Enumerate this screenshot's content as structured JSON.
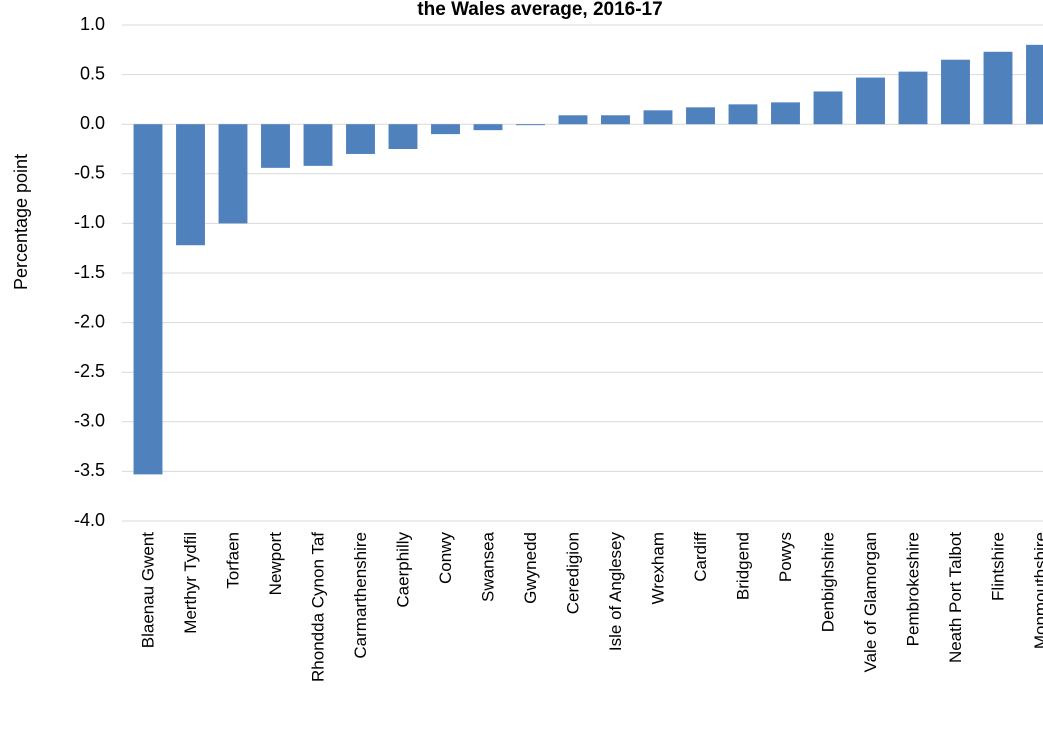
{
  "chart_data": {
    "type": "bar",
    "title": "the Wales average, 2016-17",
    "y_label": "Percentage point",
    "categories": [
      "Blaenau Gwent",
      "Merthyr Tydfil",
      "Torfaen",
      "Newport",
      "Rhondda Cynon Taf",
      "Carmarthenshire",
      "Caerphilly",
      "Conwy",
      "Swansea",
      "Gwynedd",
      "Ceredigion",
      "Isle of Anglesey",
      "Wrexham",
      "Cardiff",
      "Bridgend",
      "Powys",
      "Denbighshire",
      "Vale of Glamorgan",
      "Pembrokeshire",
      "Neath Port Talbot",
      "Flintshire",
      "Monmouthshire"
    ],
    "values": [
      -3.53,
      -1.22,
      -1.0,
      -0.44,
      -0.42,
      -0.3,
      -0.25,
      -0.1,
      -0.06,
      -0.01,
      0.09,
      0.09,
      0.14,
      0.17,
      0.2,
      0.22,
      0.33,
      0.47,
      0.53,
      0.65,
      0.73,
      0.8
    ],
    "color": "#4f81bd",
    "ylim": [
      -4.0,
      1.0
    ],
    "yticks": [
      {
        "value": 1.0,
        "label": "1.0"
      },
      0.5,
      {
        "value": 0.0,
        "label": "0.0"
      },
      -0.5,
      {
        "value": -1.0,
        "label": "-1.0"
      },
      -1.5,
      {
        "value": -2.0,
        "label": "-2.0"
      },
      -2.5,
      {
        "value": -3.0,
        "label": "-3.0"
      },
      -3.5,
      {
        "value": -4.0,
        "label": "-4.0"
      }
    ],
    "grid": true
  }
}
